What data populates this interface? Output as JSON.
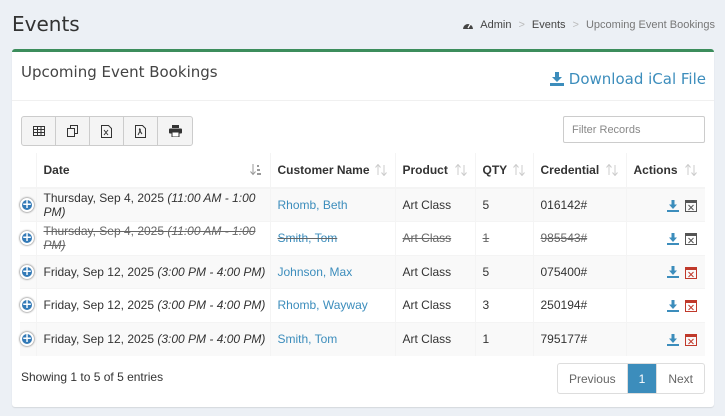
{
  "header": {
    "title": "Events",
    "breadcrumb": [
      "Admin",
      "Events",
      "Upcoming Event Bookings"
    ]
  },
  "box": {
    "title": "Upcoming Event Bookings",
    "ical_label": "Download iCal File"
  },
  "toolbar": {
    "buttons": [
      "table-icon",
      "copy-icon",
      "excel-icon",
      "pdf-icon",
      "print-icon"
    ]
  },
  "filter": {
    "placeholder": "Filter Records",
    "value": ""
  },
  "table": {
    "columns": [
      "Date",
      "Customer Name",
      "Product",
      "QTY",
      "Credential",
      "Actions"
    ],
    "rows": [
      {
        "date": "Thursday, Sep 4, 2025",
        "time": "(11:00 AM - 1:00 PM)",
        "customer": "Rhomb, Beth",
        "product": "Art Class",
        "qty": "5",
        "credential": "016142#",
        "cancelled": false
      },
      {
        "date": "Thursday, Sep 4, 2025",
        "time": "(11:00 AM - 1:00 PM)",
        "customer": "Smith, Tom",
        "product": "Art Class",
        "qty": "1",
        "credential": "985543#",
        "cancelled": true
      },
      {
        "date": "Friday, Sep 12, 2025",
        "time": "(3:00 PM - 4:00 PM)",
        "customer": "Johnson, Max",
        "product": "Art Class",
        "qty": "5",
        "credential": "075400#",
        "cancelled": false
      },
      {
        "date": "Friday, Sep 12, 2025",
        "time": "(3:00 PM - 4:00 PM)",
        "customer": "Rhomb, Wayway",
        "product": "Art Class",
        "qty": "3",
        "credential": "250194#",
        "cancelled": false
      },
      {
        "date": "Friday, Sep 12, 2025",
        "time": "(3:00 PM - 4:00 PM)",
        "customer": "Smith, Tom",
        "product": "Art Class",
        "qty": "1",
        "credential": "795177#",
        "cancelled": false
      }
    ]
  },
  "footer": {
    "info": "Showing 1 to 5 of 5 entries",
    "pagination": {
      "previous": "Previous",
      "current": "1",
      "next": "Next"
    }
  },
  "colors": {
    "accent": "#3c8dbc",
    "box_border": "#3c8d5c",
    "cancel_red": "#c0392b"
  }
}
